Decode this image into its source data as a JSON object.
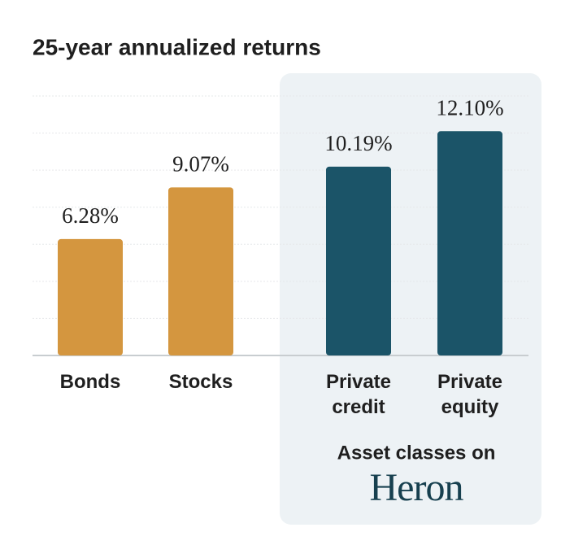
{
  "chart_data": {
    "type": "bar",
    "title": "25-year annualized returns",
    "categories": [
      "Bonds",
      "Stocks",
      "Private credit",
      "Private equity"
    ],
    "values": [
      6.28,
      9.07,
      10.19,
      12.1
    ],
    "value_labels": [
      "6.28%",
      "9.07%",
      "10.19%",
      "12.10%"
    ],
    "colors": [
      "#d4963f",
      "#d4963f",
      "#1b5468",
      "#1b5468"
    ],
    "ylim": [
      0,
      14
    ],
    "yticks": [
      0,
      2,
      4,
      6,
      8,
      10,
      12,
      14
    ],
    "grid": true,
    "annotation": "Asset classes on",
    "brand": "Heron"
  }
}
